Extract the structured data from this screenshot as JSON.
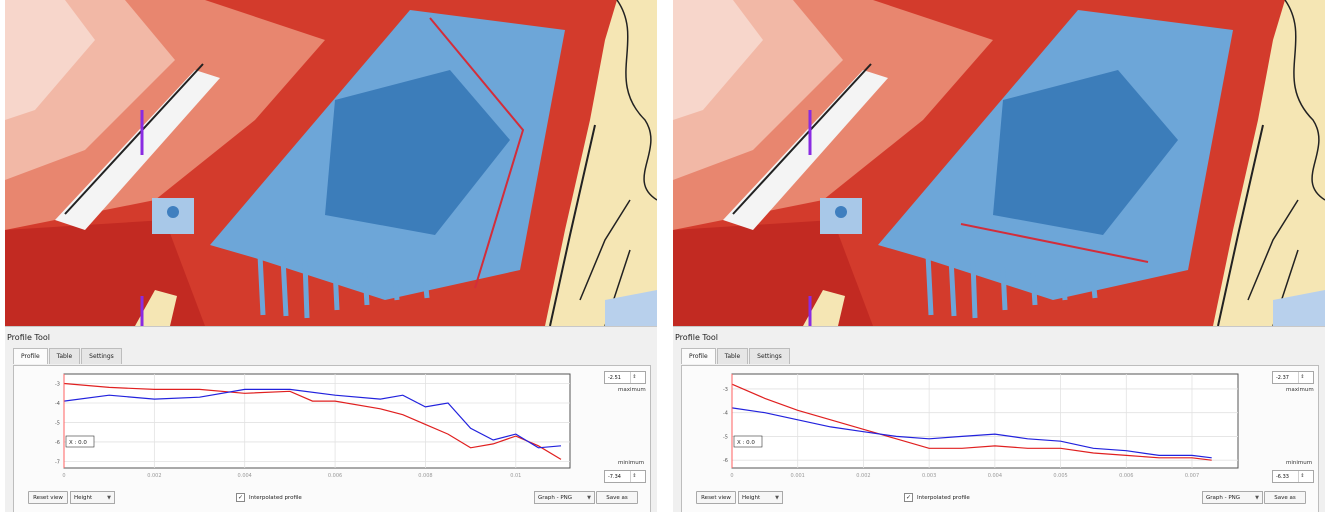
{
  "panels": [
    {
      "id": "left",
      "tool_title": "Profile Tool",
      "tabs": [
        {
          "label": "Profile",
          "active": true
        },
        {
          "label": "Table",
          "active": false
        },
        {
          "label": "Settings",
          "active": false
        }
      ],
      "max_value": "-2.51",
      "max_label": "maximum",
      "min_label": "minimum",
      "min_value": "-7.34",
      "reset_label": "Reset view",
      "height_combo": "Height",
      "interpolated_label": "Interpolated profile",
      "interpolated_checked": true,
      "export_combo": "Graph - PNG",
      "save_label": "Save as",
      "cursor_readout": "X : 0.0",
      "chart_data": {
        "type": "line",
        "x_ticks": [
          "0",
          "0.002",
          "0.004",
          "0.006",
          "0.008",
          "0.01"
        ],
        "y_ticks": [
          "-3",
          "-4",
          "-5",
          "-6",
          "-7"
        ],
        "xlim": [
          0,
          0.0112
        ],
        "ylim": [
          -7.34,
          -2.51
        ],
        "grid": true,
        "cursor_x": 0,
        "series": [
          {
            "color": "#e02020",
            "x": [
              0,
              0.001,
              0.002,
              0.003,
              0.004,
              0.005,
              0.0055,
              0.006,
              0.007,
              0.0075,
              0.008,
              0.0085,
              0.009,
              0.0095,
              0.01,
              0.0105,
              0.011
            ],
            "y": [
              -3.0,
              -3.2,
              -3.3,
              -3.3,
              -3.5,
              -3.4,
              -3.9,
              -3.9,
              -4.3,
              -4.6,
              -5.1,
              -5.6,
              -6.3,
              -6.1,
              -5.7,
              -6.2,
              -6.9
            ]
          },
          {
            "color": "#2222dd",
            "x": [
              0,
              0.001,
              0.002,
              0.003,
              0.004,
              0.005,
              0.006,
              0.007,
              0.0075,
              0.008,
              0.0085,
              0.009,
              0.0095,
              0.01,
              0.0105,
              0.011
            ],
            "y": [
              -3.9,
              -3.6,
              -3.8,
              -3.7,
              -3.3,
              -3.3,
              -3.6,
              -3.8,
              -3.6,
              -4.2,
              -4.0,
              -5.3,
              -5.9,
              -5.6,
              -6.3,
              -6.2
            ]
          }
        ]
      }
    },
    {
      "id": "right",
      "tool_title": "Profile Tool",
      "tabs": [
        {
          "label": "Profile",
          "active": true
        },
        {
          "label": "Table",
          "active": false
        },
        {
          "label": "Settings",
          "active": false
        }
      ],
      "max_value": "-2.37",
      "max_label": "maximum",
      "min_label": "minimum",
      "min_value": "-6.33",
      "reset_label": "Reset view",
      "height_combo": "Height",
      "interpolated_label": "Interpolated profile",
      "interpolated_checked": true,
      "export_combo": "Graph - PNG",
      "save_label": "Save as",
      "cursor_readout": "X : 0.0",
      "chart_data": {
        "type": "line",
        "x_ticks": [
          "0",
          "0.001",
          "0.002",
          "0.003",
          "0.004",
          "0.005",
          "0.006",
          "0.007"
        ],
        "y_ticks": [
          "-3",
          "-4",
          "-5",
          "-6"
        ],
        "xlim": [
          0,
          0.0077
        ],
        "ylim": [
          -6.33,
          -2.37
        ],
        "grid": true,
        "cursor_x": 0,
        "series": [
          {
            "color": "#e02020",
            "x": [
              0,
              0.0005,
              0.001,
              0.0015,
              0.002,
              0.0025,
              0.003,
              0.0035,
              0.004,
              0.0045,
              0.005,
              0.0055,
              0.006,
              0.0065,
              0.007,
              0.0073
            ],
            "y": [
              -2.8,
              -3.4,
              -3.9,
              -4.3,
              -4.7,
              -5.1,
              -5.5,
              -5.5,
              -5.4,
              -5.5,
              -5.5,
              -5.7,
              -5.8,
              -5.9,
              -5.9,
              -6.0
            ]
          },
          {
            "color": "#2222dd",
            "x": [
              0,
              0.0005,
              0.001,
              0.0015,
              0.002,
              0.0025,
              0.003,
              0.0035,
              0.004,
              0.0045,
              0.005,
              0.0055,
              0.006,
              0.0065,
              0.007,
              0.0073
            ],
            "y": [
              -3.8,
              -4.0,
              -4.3,
              -4.6,
              -4.8,
              -5.0,
              -5.1,
              -5.0,
              -4.9,
              -5.1,
              -5.2,
              -5.5,
              -5.6,
              -5.8,
              -5.8,
              -5.9
            ]
          }
        ]
      }
    }
  ],
  "colors": {
    "map_red": "#d33b2c",
    "map_red_dark": "#c22a22",
    "map_light_red": "#f2b8a6",
    "water_blue": "#6da6d8",
    "water_deep": "#2c6fb0",
    "land_cream": "#f5e6b4",
    "profile_line": "#d32d3a",
    "panel_bg": "#f0f0f0",
    "purple_marker": "#8a2be2"
  }
}
